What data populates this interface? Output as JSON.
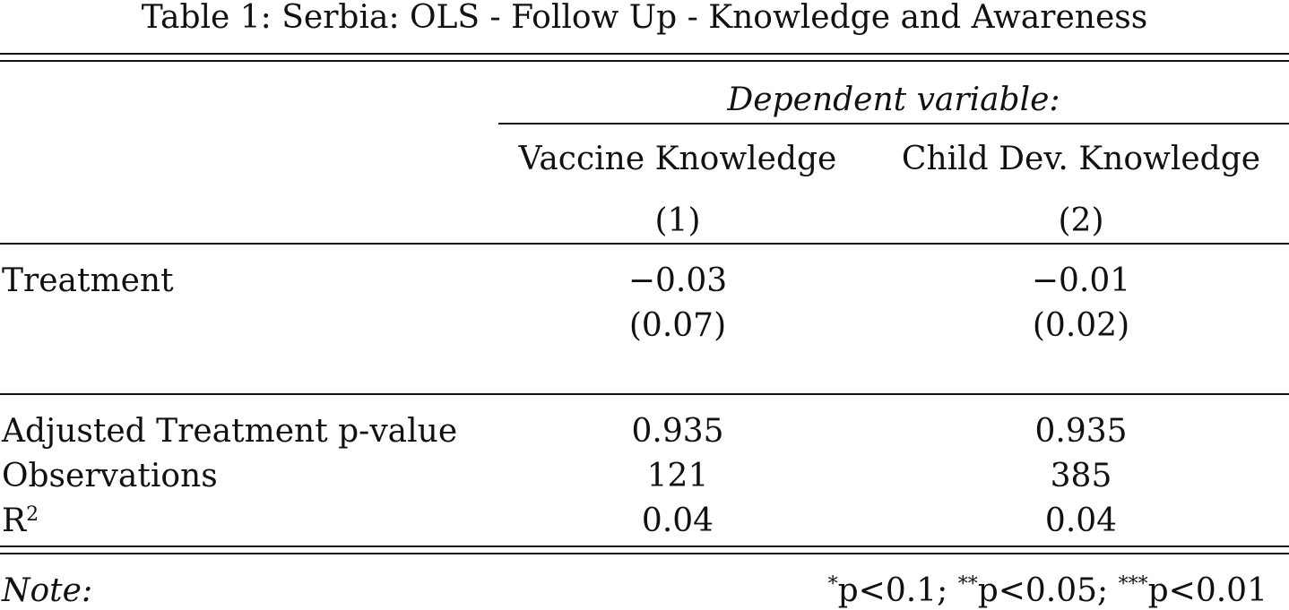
{
  "table": {
    "caption": "Table 1: Serbia: OLS - Follow Up - Knowledge and Awareness",
    "dep_var_label": "Dependent variable:",
    "columns": [
      {
        "name": "Vaccine Knowledge",
        "number": "(1)"
      },
      {
        "name": "Child Dev. Knowledge",
        "number": "(2)"
      }
    ],
    "rows": {
      "treatment": {
        "label": "Treatment",
        "coef": [
          "−0.03",
          "−0.01"
        ],
        "se": [
          "(0.07)",
          "(0.02)"
        ]
      },
      "adj_pvalue": {
        "label": "Adjusted Treatment p-value",
        "values": [
          "0.935",
          "0.935"
        ]
      },
      "observations": {
        "label": "Observations",
        "values": [
          "121",
          "385"
        ]
      },
      "r2": {
        "label": "R",
        "label_sup": "2",
        "values": [
          "0.04",
          "0.04"
        ]
      }
    },
    "note": {
      "label": "Note:",
      "p1": "p<0.1; ",
      "p2": "p<0.05; ",
      "p3": "p<0.01",
      "star1": "*",
      "star2": "**",
      "star3": "***"
    }
  }
}
